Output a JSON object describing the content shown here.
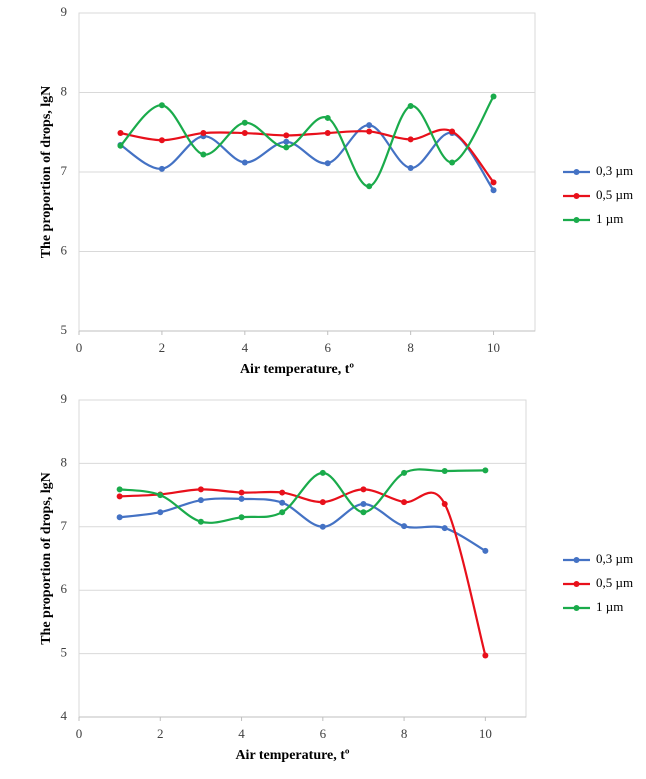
{
  "chart_data": [
    {
      "type": "line",
      "x_label": "Air temperature, tº",
      "y_label": "The proportion of drops, lgN",
      "x": [
        1,
        2,
        3,
        4,
        5,
        6,
        7,
        8,
        9,
        10
      ],
      "xlim": [
        0,
        11
      ],
      "xticks": [
        0,
        2,
        4,
        6,
        8,
        10
      ],
      "ylim": [
        5,
        9
      ],
      "yticks": [
        5,
        6,
        7,
        8,
        9
      ],
      "grid": true,
      "legend": "right",
      "series": [
        {
          "name": "0,3 µm",
          "color": "#4472c4",
          "values": [
            7.34,
            7.04,
            7.45,
            7.12,
            7.38,
            7.11,
            7.59,
            7.05,
            7.49,
            6.77
          ]
        },
        {
          "name": "0,5 µm",
          "color": "#e8101b",
          "values": [
            7.49,
            7.4,
            7.49,
            7.49,
            7.46,
            7.49,
            7.51,
            7.41,
            7.51,
            6.87
          ]
        },
        {
          "name": "1 µm",
          "color": "#1aab4b",
          "values": [
            7.33,
            7.84,
            7.22,
            7.62,
            7.31,
            7.68,
            6.82,
            7.83,
            7.12,
            7.95
          ]
        }
      ]
    },
    {
      "type": "line",
      "x_label": "Air temperature, tº",
      "y_label": "The proportion of drops, lgN",
      "x": [
        1,
        2,
        3,
        4,
        5,
        6,
        7,
        8,
        9,
        10
      ],
      "xlim": [
        0,
        11
      ],
      "xticks": [
        0,
        2,
        4,
        6,
        8,
        10
      ],
      "ylim": [
        4,
        9
      ],
      "yticks": [
        4,
        5,
        6,
        7,
        8,
        9
      ],
      "grid": true,
      "legend": "right",
      "series": [
        {
          "name": "0,3 µm",
          "color": "#4472c4",
          "values": [
            7.15,
            7.23,
            7.42,
            7.44,
            7.38,
            7.0,
            7.36,
            7.01,
            6.98,
            6.62
          ]
        },
        {
          "name": "0,5 µm",
          "color": "#e8101b",
          "values": [
            7.48,
            7.51,
            7.59,
            7.54,
            7.54,
            7.39,
            7.59,
            7.39,
            7.36,
            4.97
          ]
        },
        {
          "name": "1 µm",
          "color": "#1aab4b",
          "values": [
            7.59,
            7.5,
            7.08,
            7.15,
            7.23,
            7.85,
            7.23,
            7.85,
            7.88,
            7.89
          ]
        }
      ]
    }
  ]
}
